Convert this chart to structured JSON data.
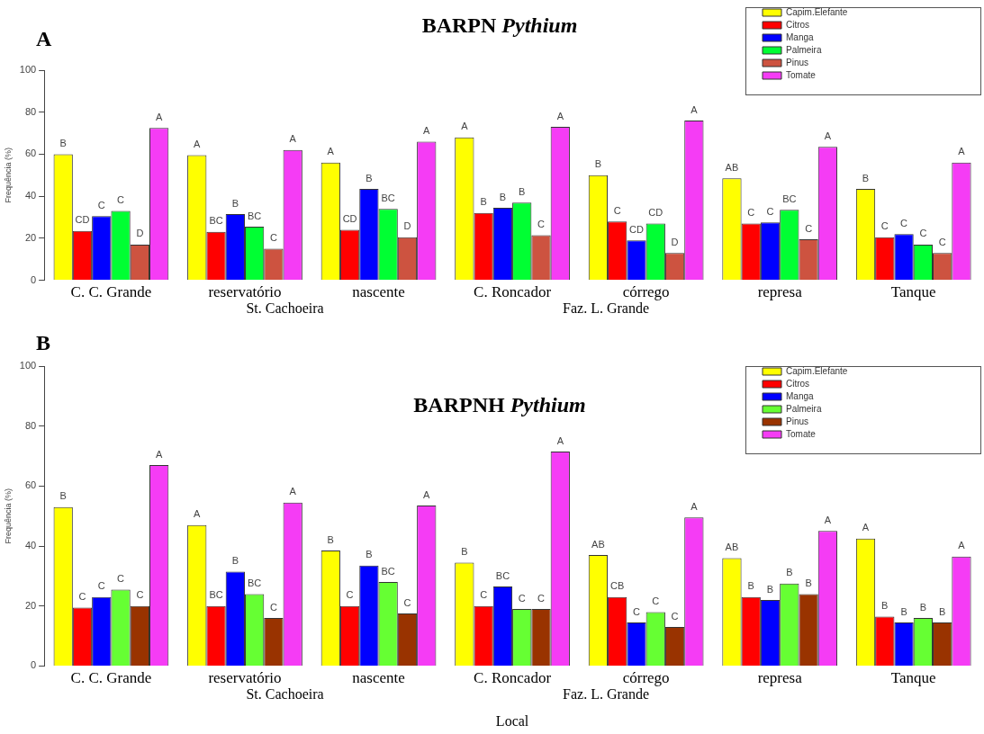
{
  "chart_data": [
    {
      "type": "bar",
      "title": "BARPN Pythium",
      "ylabel": "Frequência (%)",
      "categories": [
        "C. C. Grande",
        "reservatório",
        "nascente",
        "C. Roncador",
        "córrego",
        "represa",
        "Tanque"
      ],
      "series": [
        {
          "name": "Capim.Elefante",
          "color": "#ffff00",
          "values": [
            60,
            59.5,
            56,
            68,
            50,
            48.5,
            43.5
          ],
          "value_labels": [
            "B",
            "A",
            "A",
            "A",
            "B",
            "AB",
            "B"
          ]
        },
        {
          "name": "Citros",
          "color": "#ff0000",
          "values": [
            23.5,
            23,
            24,
            32,
            28,
            27,
            20.5
          ],
          "value_labels": [
            "CD",
            "BC",
            "CD",
            "B",
            "C",
            "C",
            "C"
          ]
        },
        {
          "name": "Manga",
          "color": "#0000ff",
          "values": [
            30.5,
            31.5,
            43.5,
            34.5,
            19,
            27.5,
            22
          ],
          "value_labels": [
            "C",
            "B",
            "B",
            "B",
            "CD",
            "C",
            "C"
          ]
        },
        {
          "name": "Palmeira",
          "color": "#00ff33",
          "values": [
            33,
            25.5,
            34,
            37,
            27,
            33.5,
            17
          ],
          "value_labels": [
            "C",
            "BC",
            "BC",
            "B",
            "CD",
            "BC",
            "C"
          ]
        },
        {
          "name": "Pinus",
          "color": "#cd5340",
          "values": [
            17,
            15,
            20.5,
            21.5,
            13,
            19.5,
            13
          ],
          "value_labels": [
            "D",
            "C",
            "D",
            "C",
            "D",
            "C",
            "C"
          ]
        },
        {
          "name": "Tomate",
          "color": "#f53cf5",
          "values": [
            72.5,
            62,
            66,
            73,
            76,
            63.5,
            56
          ],
          "value_labels": [
            "A",
            "A",
            "A",
            "A",
            "A",
            "A",
            "A"
          ]
        }
      ],
      "ylim": [
        0,
        100
      ],
      "yticks": [
        0,
        20,
        40,
        60,
        80,
        100
      ],
      "legend": "top right",
      "annotations": [
        "A",
        "St. Cachoeira",
        "Faz. L. Grande"
      ]
    },
    {
      "type": "bar",
      "title": "BARPNH Pythium",
      "xlabel": "Local",
      "ylabel": "Frequência (%)",
      "categories": [
        "C. C. Grande",
        "reservatório",
        "nascente",
        "C. Roncador",
        "córrego",
        "represa",
        "Tanque"
      ],
      "series": [
        {
          "name": "Capim.Elefante",
          "color": "#ffff00",
          "values": [
            53,
            47,
            38.5,
            34.5,
            37,
            36,
            42.5
          ],
          "value_labels": [
            "B",
            "A",
            "B",
            "B",
            "AB",
            "AB",
            "A"
          ]
        },
        {
          "name": "Citros",
          "color": "#ff0000",
          "values": [
            19.5,
            20,
            20,
            20,
            23,
            23,
            16.5
          ],
          "value_labels": [
            "C",
            "BC",
            "C",
            "C",
            "CB",
            "B",
            "B"
          ]
        },
        {
          "name": "Manga",
          "color": "#0000ff",
          "values": [
            23,
            31.5,
            33.5,
            26.5,
            14.5,
            22,
            14.5
          ],
          "value_labels": [
            "C",
            "B",
            "B",
            "BC",
            "C",
            "B",
            "B"
          ]
        },
        {
          "name": "Palmeira",
          "color": "#66ff33",
          "values": [
            25.5,
            24,
            28,
            19,
            18,
            27.5,
            16
          ],
          "value_labels": [
            "C",
            "BC",
            "BC",
            "C",
            "C",
            "B",
            "B"
          ]
        },
        {
          "name": "Pinus",
          "color": "#993300",
          "values": [
            20,
            16,
            17.5,
            19,
            13,
            24,
            14.5
          ],
          "value_labels": [
            "C",
            "C",
            "C",
            "C",
            "C",
            "B",
            "B"
          ]
        },
        {
          "name": "Tomate",
          "color": "#f53cf5",
          "values": [
            67,
            54.5,
            53.5,
            71.5,
            49.5,
            45,
            36.5
          ],
          "value_labels": [
            "A",
            "A",
            "A",
            "A",
            "A",
            "A",
            "A"
          ]
        }
      ],
      "ylim": [
        0,
        100
      ],
      "yticks": [
        0,
        20,
        40,
        60,
        80,
        100
      ],
      "legend": "top right",
      "annotations": [
        "B",
        "St. Cachoeira",
        "Faz. L. Grande"
      ]
    }
  ]
}
